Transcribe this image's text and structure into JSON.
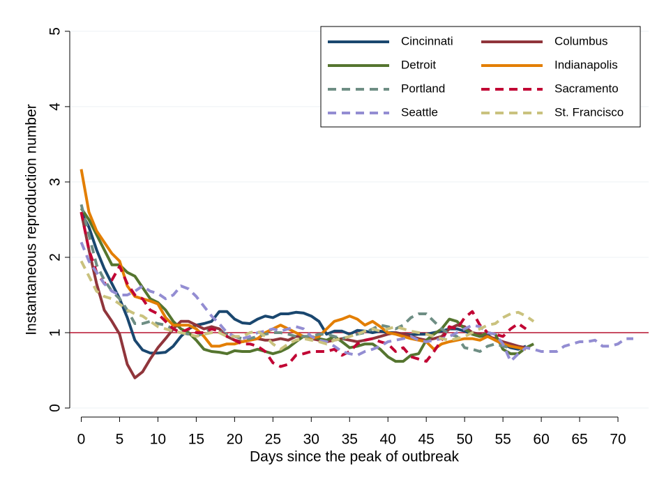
{
  "chart_data": {
    "type": "line",
    "x_label": "Days since the peak of outbreak",
    "y_label": "Instantaneous reproduction number",
    "x": [
      0,
      1,
      2,
      3,
      4,
      5,
      6,
      7,
      8,
      9,
      10,
      11,
      12,
      13,
      14,
      15,
      16,
      17,
      18,
      19,
      20,
      21,
      22,
      23,
      24,
      25,
      26,
      27,
      28,
      29,
      30,
      31,
      32,
      33,
      34,
      35,
      36,
      37,
      38,
      39,
      40,
      41,
      42,
      43,
      44,
      45,
      46,
      47,
      48,
      49,
      50,
      51,
      52,
      53,
      54,
      55,
      56,
      57,
      58,
      59,
      60,
      61,
      62,
      63,
      64,
      65,
      66,
      67,
      68,
      69,
      70,
      71,
      72
    ],
    "xlim": [
      -1.5,
      74
    ],
    "xticks": [
      0,
      5,
      10,
      15,
      20,
      25,
      30,
      35,
      40,
      45,
      50,
      55,
      60,
      65,
      70
    ],
    "ylim": [
      -0.12,
      5.23
    ],
    "yticks": [
      0,
      1,
      2,
      3,
      4,
      5
    ],
    "grid": true,
    "hline": 1,
    "hline_color": "#b5122e",
    "legend_position": "upper-right",
    "series": [
      {
        "name": "Cincinnati",
        "color": "#1a476f",
        "style": "solid",
        "values": [
          2.6,
          2.4,
          2.1,
          1.85,
          1.65,
          1.45,
          1.2,
          0.9,
          0.77,
          0.73,
          0.73,
          0.74,
          0.82,
          0.95,
          1.05,
          1.1,
          1.12,
          1.15,
          1.28,
          1.28,
          1.18,
          1.13,
          1.12,
          1.18,
          1.22,
          1.2,
          1.25,
          1.25,
          1.27,
          1.26,
          1.22,
          1.15,
          0.98,
          1.02,
          1.02,
          0.98,
          1.03,
          1.02,
          1.0,
          1.02,
          1.0,
          1.0,
          0.98,
          0.97,
          0.98,
          0.98,
          1.0,
          1.02,
          1.05,
          1.05,
          1.02,
          0.98,
          0.95,
          0.97,
          0.9,
          0.85,
          0.8,
          0.78,
          0.82,
          null,
          null,
          null,
          null,
          null,
          null,
          null,
          null,
          null,
          null,
          null,
          null,
          null,
          null
        ]
      },
      {
        "name": "Columbus",
        "color": "#90353b",
        "style": "solid",
        "values": [
          2.6,
          2.1,
          1.65,
          1.3,
          1.15,
          0.98,
          0.58,
          0.4,
          0.48,
          0.65,
          0.8,
          0.92,
          1.05,
          1.15,
          1.15,
          1.1,
          1.05,
          1.08,
          1.05,
          0.95,
          0.9,
          0.88,
          0.9,
          0.92,
          0.9,
          0.9,
          0.92,
          0.9,
          0.95,
          0.95,
          0.92,
          0.9,
          0.88,
          0.9,
          0.92,
          0.9,
          0.88,
          0.9,
          0.92,
          0.95,
          0.98,
          1.0,
          0.98,
          0.95,
          0.92,
          0.9,
          0.92,
          0.95,
          1.05,
          1.1,
          1.08,
          1.0,
          0.98,
          0.95,
          0.92,
          0.88,
          0.85,
          0.82,
          0.8,
          null,
          null,
          null,
          null,
          null,
          null,
          null,
          null,
          null,
          null,
          null,
          null,
          null,
          null
        ]
      },
      {
        "name": "Detroit",
        "color": "#55752f",
        "style": "solid",
        "values": [
          2.65,
          2.5,
          2.3,
          2.1,
          1.9,
          1.9,
          1.8,
          1.75,
          1.6,
          1.45,
          1.4,
          1.3,
          1.15,
          1.05,
          1.0,
          0.9,
          0.78,
          0.75,
          0.74,
          0.72,
          0.76,
          0.75,
          0.75,
          0.78,
          0.75,
          0.72,
          0.75,
          0.8,
          0.88,
          0.95,
          0.95,
          0.92,
          0.9,
          0.95,
          0.88,
          0.8,
          0.82,
          0.85,
          0.85,
          0.78,
          0.68,
          0.62,
          0.62,
          0.7,
          0.72,
          0.9,
          0.98,
          1.05,
          1.18,
          1.15,
          1.05,
          0.98,
          0.95,
          1.0,
          0.98,
          0.78,
          0.72,
          0.72,
          0.8,
          0.85,
          null,
          null,
          null,
          null,
          null,
          null,
          null,
          null,
          null,
          null,
          null,
          null,
          null
        ]
      },
      {
        "name": "Indianapolis",
        "color": "#e37e00",
        "style": "solid",
        "values": [
          3.17,
          2.6,
          2.35,
          2.2,
          2.05,
          1.95,
          1.62,
          1.48,
          1.45,
          1.42,
          1.38,
          1.2,
          1.1,
          1.1,
          1.1,
          1.05,
          0.95,
          0.82,
          0.82,
          0.85,
          0.85,
          0.88,
          0.9,
          0.92,
          1.0,
          1.05,
          1.1,
          1.05,
          1.0,
          0.95,
          0.92,
          0.95,
          1.05,
          1.15,
          1.18,
          1.22,
          1.18,
          1.1,
          1.15,
          1.08,
          1.0,
          0.98,
          0.95,
          0.92,
          0.9,
          0.88,
          0.78,
          0.85,
          0.88,
          0.9,
          0.92,
          0.92,
          0.9,
          0.95,
          0.9,
          0.85,
          0.82,
          0.8,
          0.78,
          null,
          null,
          null,
          null,
          null,
          null,
          null,
          null,
          null,
          null,
          null,
          null,
          null,
          null
        ]
      },
      {
        "name": "Portland",
        "color": "#6e8e84",
        "style": "dashed",
        "values": [
          2.7,
          2.3,
          1.9,
          1.7,
          1.55,
          1.45,
          1.3,
          1.12,
          1.12,
          1.15,
          1.12,
          1.1,
          1.05,
          1.0,
          0.98,
          0.95,
          1.0,
          1.05,
          1.02,
          0.98,
          0.95,
          0.92,
          0.92,
          0.95,
          0.98,
          1.0,
          1.0,
          0.98,
          0.95,
          0.95,
          0.95,
          0.98,
          0.98,
          0.95,
          0.92,
          0.95,
          0.98,
          1.0,
          1.05,
          1.1,
          1.08,
          1.05,
          1.1,
          1.2,
          1.25,
          1.25,
          1.15,
          1.05,
          0.98,
          0.95,
          0.8,
          0.78,
          0.75,
          0.82,
          0.85,
          0.82,
          0.8,
          null,
          null,
          null,
          null,
          null,
          null,
          null,
          null,
          null,
          null,
          null,
          null,
          null,
          null,
          null,
          null
        ]
      },
      {
        "name": "Sacramento",
        "color": "#c10534",
        "style": "dashed",
        "values": [
          2.6,
          2.1,
          1.8,
          1.65,
          1.7,
          1.88,
          1.65,
          1.5,
          1.45,
          1.3,
          1.25,
          1.15,
          1.05,
          1.0,
          1.05,
          1.0,
          1.0,
          1.05,
          1.02,
          0.95,
          0.9,
          0.85,
          0.85,
          0.82,
          0.75,
          0.6,
          0.55,
          0.58,
          0.7,
          0.72,
          0.75,
          0.75,
          0.75,
          0.78,
          0.7,
          0.75,
          0.85,
          0.9,
          0.92,
          0.88,
          0.85,
          0.75,
          0.8,
          0.68,
          0.65,
          0.62,
          0.75,
          0.9,
          1.08,
          1.05,
          1.2,
          1.28,
          1.1,
          1.0,
          0.98,
          0.95,
          1.05,
          1.12,
          1.05,
          null,
          null,
          null,
          null,
          null,
          null,
          null,
          null,
          null,
          null,
          null,
          null,
          null,
          null
        ]
      },
      {
        "name": "Seattle",
        "color": "#938dd2",
        "style": "dashed",
        "values": [
          2.2,
          1.95,
          1.8,
          1.65,
          1.55,
          1.5,
          1.5,
          1.55,
          1.62,
          1.55,
          1.52,
          1.45,
          1.5,
          1.62,
          1.58,
          1.48,
          1.35,
          1.22,
          1.12,
          1.0,
          0.95,
          0.92,
          0.95,
          1.0,
          1.02,
          1.05,
          1.02,
          1.05,
          1.08,
          1.05,
          0.95,
          0.9,
          0.88,
          0.82,
          0.75,
          0.72,
          0.7,
          0.75,
          0.78,
          0.82,
          0.88,
          0.9,
          0.92,
          0.95,
          0.9,
          0.88,
          0.9,
          0.92,
          0.95,
          1.0,
          1.05,
          1.1,
          1.08,
          1.0,
          0.98,
          0.85,
          0.62,
          0.72,
          0.8,
          0.78,
          0.75,
          0.75,
          0.75,
          0.82,
          0.85,
          0.88,
          0.88,
          0.9,
          0.82,
          0.82,
          0.85,
          0.92,
          0.92
        ]
      },
      {
        "name": "St. Francisco",
        "color": "#cac27e",
        "style": "dashed",
        "values": [
          1.95,
          1.75,
          1.55,
          1.48,
          1.45,
          1.38,
          1.3,
          1.25,
          1.22,
          1.15,
          1.08,
          1.05,
          1.02,
          1.0,
          0.98,
          0.95,
          0.98,
          1.0,
          1.0,
          0.95,
          0.95,
          0.95,
          1.0,
          1.02,
          0.95,
          0.85,
          0.78,
          0.85,
          0.9,
          0.92,
          0.9,
          0.88,
          0.85,
          0.9,
          0.92,
          0.95,
          0.98,
          1.02,
          1.05,
          1.02,
          1.05,
          1.08,
          1.05,
          1.02,
          1.0,
          0.98,
          0.95,
          0.92,
          0.9,
          0.92,
          0.95,
          1.0,
          1.05,
          1.1,
          1.12,
          1.2,
          1.25,
          1.27,
          1.22,
          1.15,
          null,
          null,
          null,
          null,
          null,
          null,
          null,
          null,
          null,
          null,
          null,
          null,
          null
        ]
      }
    ]
  }
}
